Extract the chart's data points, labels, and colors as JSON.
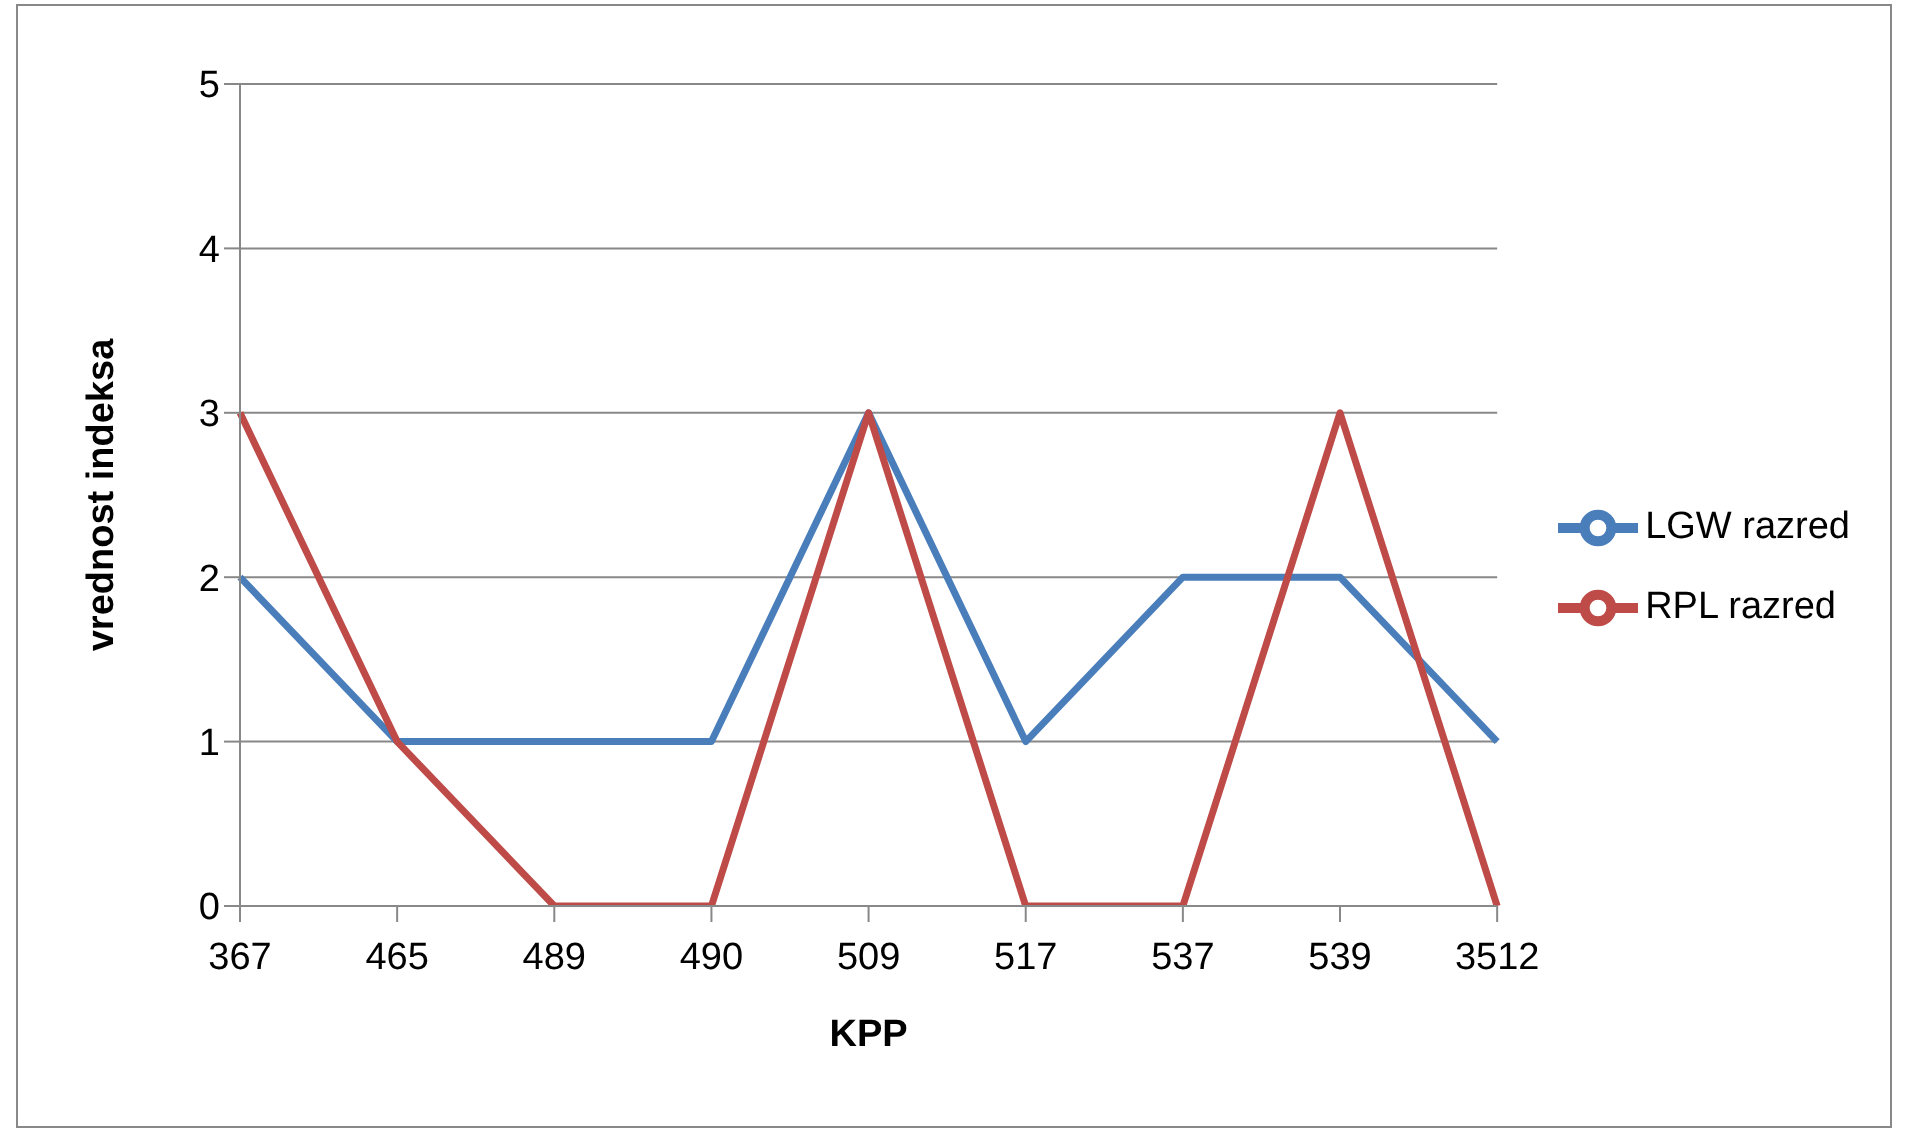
{
  "chart_data": {
    "type": "line",
    "xlabel": "KPP",
    "ylabel": "vrednost indeksa",
    "categories": [
      "367",
      "465",
      "489",
      "490",
      "509",
      "517",
      "537",
      "539",
      "3512"
    ],
    "series": [
      {
        "name": "LGW razred",
        "color": "#4a7ebb",
        "values": [
          2,
          1,
          1,
          1,
          3,
          1,
          2,
          2,
          1
        ]
      },
      {
        "name": "RPL razred",
        "color": "#be4b48",
        "values": [
          3,
          1,
          0,
          0,
          3,
          0,
          0,
          3,
          0
        ]
      }
    ],
    "ylim": [
      0,
      5
    ],
    "yticks": [
      0,
      1,
      2,
      3,
      4,
      5
    ],
    "grid": "y",
    "legend": "right",
    "marker": "none",
    "line_style": "solid"
  }
}
